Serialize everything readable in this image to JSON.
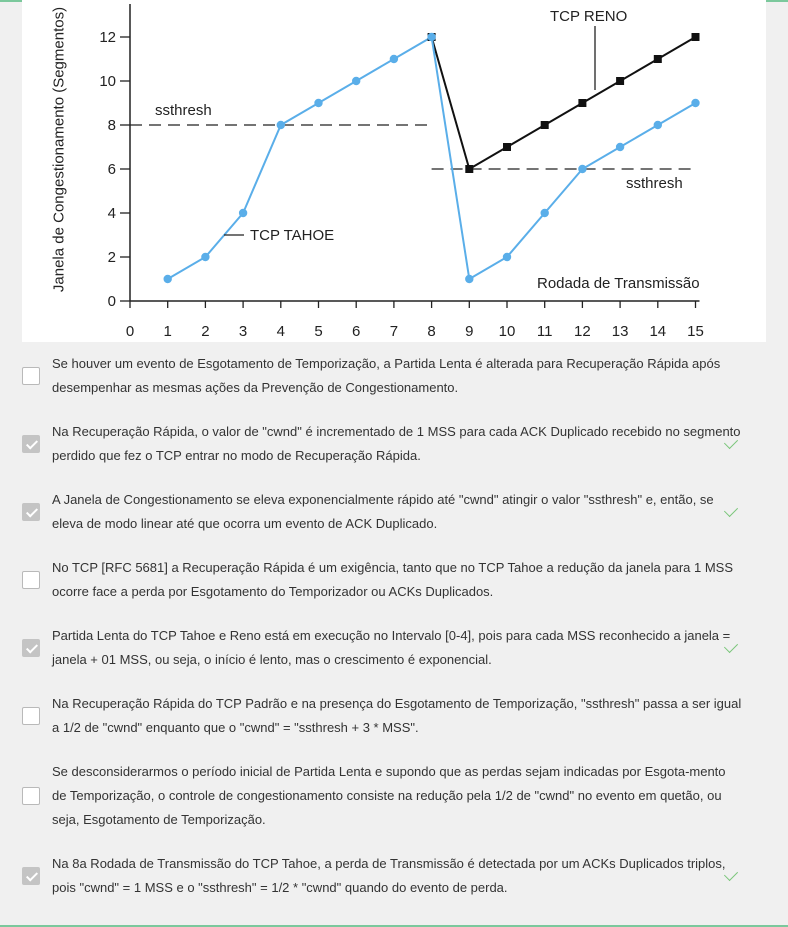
{
  "chart_data": {
    "type": "line",
    "ylabel": "Janela de Congestionamento (Segmentos)",
    "xlabel": "Rodada de Transmissão",
    "x_ticks": [
      0,
      1,
      2,
      3,
      4,
      5,
      6,
      7,
      8,
      9,
      10,
      11,
      12,
      13,
      14,
      15
    ],
    "y_ticks": [
      0,
      2,
      4,
      6,
      8,
      10,
      12
    ],
    "xlim": [
      0,
      15
    ],
    "ylim": [
      0,
      13
    ],
    "series": [
      {
        "name": "TCP TAHOE",
        "color": "#5aaee9",
        "points": [
          [
            1,
            1
          ],
          [
            2,
            2
          ],
          [
            3,
            4
          ],
          [
            4,
            8
          ],
          [
            5,
            9
          ],
          [
            6,
            10
          ],
          [
            7,
            11
          ],
          [
            8,
            12
          ],
          [
            9,
            1
          ],
          [
            10,
            2
          ],
          [
            11,
            4
          ],
          [
            12,
            6
          ],
          [
            13,
            7
          ],
          [
            14,
            8
          ],
          [
            15,
            9
          ]
        ]
      },
      {
        "name": "TCP RENO",
        "color": "#111111",
        "points": [
          [
            8,
            12
          ],
          [
            9,
            6
          ],
          [
            10,
            7
          ],
          [
            11,
            8
          ],
          [
            12,
            9
          ],
          [
            13,
            10
          ],
          [
            14,
            11
          ],
          [
            15,
            12
          ]
        ]
      }
    ],
    "thresholds": [
      {
        "label": "ssthresh",
        "y": 8,
        "x_from": 0,
        "x_to": 8
      },
      {
        "label": "ssthresh",
        "y": 6,
        "x_from": 8,
        "x_to": 15
      }
    ]
  },
  "question": {
    "options": [
      {
        "text": "Se houver um evento de Esgotamento de Temporização, a Partida Lenta é alterada para Recuperação Rápida após desempenhar as mesmas ações da Prevenção de Congestionamento.",
        "checked": false
      },
      {
        "text": "Na Recuperação Rápida, o valor de \"cwnd\" é incrementado de 1 MSS para cada ACK Duplicado recebido no segmento perdido que fez o TCP entrar no modo de Recuperação Rápida.",
        "checked": true
      },
      {
        "text": "A Janela de Congestionamento se eleva exponencialmente rápido até \"cwnd\" atingir o valor \"ssthresh\" e, então, se eleva de modo linear até que ocorra um evento de ACK Duplicado.",
        "checked": true
      },
      {
        "text": "No TCP [RFC 5681] a Recuperação Rápida é um exigência, tanto que no TCP Tahoe a redução da janela para 1 MSS ocorre face a perda por Esgotamento do Temporizador ou ACKs Duplicados.",
        "checked": false
      },
      {
        "text": "Partida Lenta do TCP Tahoe e Reno está em execução no Intervalo [0-4], pois para cada MSS reconhecido a janela = janela + 01 MSS, ou seja, o início é lento, mas o crescimento é exponencial.",
        "checked": true
      },
      {
        "text": "Na Recuperação Rápida do TCP Padrão e na presença do Esgotamento de Temporização, \"ssthresh\" passa a ser igual a 1/2 de \"cwnd\" enquanto que o \"cwnd\" = \"ssthresh + 3 * MSS\".",
        "checked": false
      },
      {
        "text": "Se desconsiderarmos o período inicial de Partida Lenta e supondo que as perdas sejam indicadas por Esgota-mento de Temporização, o controle de congestionamento consiste na redução pela 1/2 de \"cwnd\" no evento em quetão, ou seja, Esgotamento de Temporização.",
        "checked": false
      },
      {
        "text": "Na 8a Rodada de Transmissão do TCP Tahoe, a perda de Transmissão é detectada por um ACKs Duplicados triplos, pois \"cwnd\" = 1 MSS e o \"ssthresh\" = 1/2 * \"cwnd\" quando do evento de perda.",
        "checked": true
      }
    ]
  }
}
